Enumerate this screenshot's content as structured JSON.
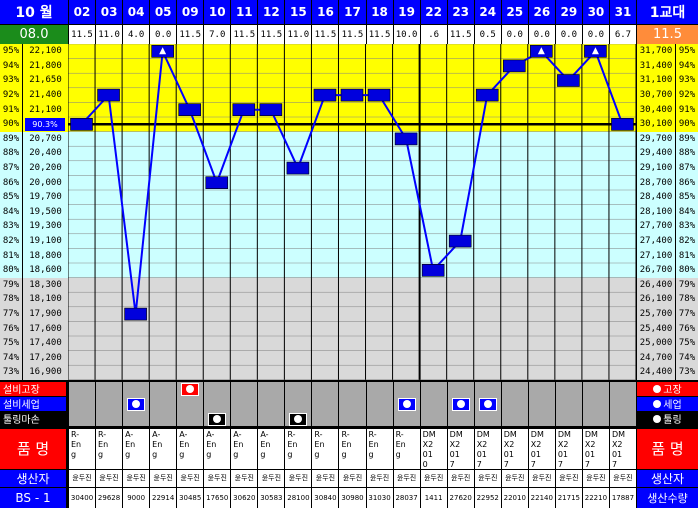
{
  "header": {
    "month_label": "10 월",
    "shift_label": "1교대",
    "left_value": "08.0",
    "right_value": "11.5",
    "days": [
      "02",
      "03",
      "04",
      "05",
      "09",
      "10",
      "11",
      "12",
      "15",
      "16",
      "17",
      "18",
      "19",
      "22",
      "23",
      "24",
      "25",
      "26",
      "29",
      "30",
      "31"
    ],
    "day_values": [
      "11.5",
      "11.0",
      "4.0",
      "0.0",
      "11.5",
      "7.0",
      "11.5",
      "11.5",
      "11.0",
      "11.5",
      "11.5",
      "11.5",
      "10.0",
      ".6",
      "11.5",
      "0.5",
      "0.0",
      "0.0",
      "0.0",
      "0.0",
      "6.7"
    ]
  },
  "grid": {
    "percent_labels": [
      "95%",
      "94%",
      "93%",
      "92%",
      "91%",
      "90%",
      "89%",
      "88%",
      "87%",
      "86%",
      "85%",
      "84%",
      "83%",
      "82%",
      "81%",
      "80%",
      "79%",
      "78%",
      "77%",
      "76%",
      "75%",
      "74%",
      "73%"
    ],
    "left_values": [
      "22,100",
      "21,800",
      "21,650",
      "21,400",
      "21,100",
      "90.3%",
      "20,700",
      "20,400",
      "20,200",
      "20,000",
      "19,700",
      "19,500",
      "19,300",
      "19,100",
      "18,800",
      "18,600",
      "18,300",
      "18,100",
      "17,900",
      "17,600",
      "17,400",
      "17,200",
      "16,900"
    ],
    "right_values": [
      "31,700",
      "31,400",
      "31,100",
      "30,700",
      "30,400",
      "30,100",
      "29,700",
      "29,400",
      "29,100",
      "28,700",
      "28,400",
      "28,100",
      "27,700",
      "27,400",
      "27,100",
      "26,700",
      "26,400",
      "26,100",
      "25,700",
      "25,400",
      "25,000",
      "24,700",
      "24,400"
    ],
    "band_colors": {
      "yellow": "#ffff00",
      "cyan": "#ccffff",
      "gray": "#d9d9d9"
    },
    "line_color": "#0000ff"
  },
  "chart_data": {
    "type": "line",
    "categories": [
      "02",
      "03",
      "04",
      "05",
      "09",
      "10",
      "11",
      "12",
      "15",
      "16",
      "17",
      "18",
      "19",
      "22",
      "23",
      "24",
      "25",
      "26",
      "29",
      "30",
      "31"
    ],
    "series": [
      {
        "values": [
          90,
          92,
          77,
          95,
          91,
          86,
          91,
          91,
          87,
          92,
          92,
          92,
          89,
          80,
          82,
          92,
          94,
          95,
          93,
          95,
          90
        ]
      }
    ],
    "ylim": [
      73,
      95
    ],
    "target": 90,
    "target_label": "90.3%",
    "triangle_markers": [
      "05",
      "26",
      "30"
    ]
  },
  "status": {
    "legend_left": [
      "설비고장",
      "설비세업",
      "툴링마손"
    ],
    "legend_right": [
      "고장",
      "세업",
      "툴링"
    ],
    "failure": [
      "09"
    ],
    "setup": [
      "04",
      "19",
      "23",
      "24"
    ],
    "tooling": [
      "10",
      "15"
    ]
  },
  "products": {
    "label_left": "품 명",
    "label_right": "품 명",
    "items": [
      "R-\nEn\ng",
      "R-\nEn\ng",
      "A-\nEn\ng",
      "A-\nEn\ng",
      "A-\nEn\ng",
      "A-\nEn\ng",
      "A-\nEn\ng",
      "A-\nEn\ng",
      "R-\nEn\ng",
      "R-\nEn\ng",
      "R-\nEn\ng",
      "R-\nEn\ng",
      "R-\nEn\ng",
      "DM\nX2\n01\n0",
      "DM\nX2\n01\n7",
      "DM\nX2\n01\n7",
      "DM\nX2\n01\n7",
      "DM\nX2\n01\n7",
      "DM\nX2\n01\n7",
      "DM\nX2\n01\n7",
      "DM\nX2\n01\n7"
    ]
  },
  "producers": {
    "label_left": "생산자",
    "label_right": "생산자",
    "names": [
      "윤두진",
      "윤두진",
      "윤두진",
      "윤두진",
      "윤두진",
      "윤두진",
      "윤두진",
      "윤두진",
      "윤두진",
      "윤두진",
      "윤두진",
      "윤두진",
      "윤두진",
      "윤두진",
      "윤두진",
      "윤두진",
      "윤두진",
      "윤두진",
      "윤두진",
      "윤두진",
      "윤두진"
    ]
  },
  "quantities": {
    "label_left": "BS - 1",
    "label_right": "생산수량",
    "values": [
      "30400",
      "29628",
      "9000",
      "22914",
      "30485",
      "17650",
      "30620",
      "30583",
      "28100",
      "30840",
      "30980",
      "31030",
      "28037",
      "1411",
      "27620",
      "22952",
      "22010",
      "22140",
      "21715",
      "22210",
      "17887"
    ]
  }
}
